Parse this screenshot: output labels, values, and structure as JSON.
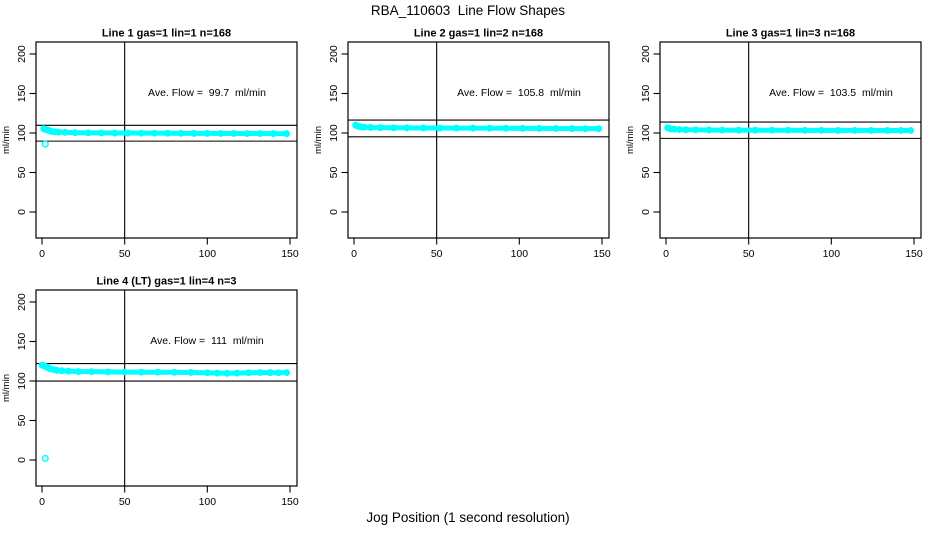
{
  "title": "RBA_110603  Line Flow Shapes",
  "xlabel": "Jog Position (1 second resolution)",
  "chart_data": {
    "type": "scatter",
    "title": "RBA_110603  Line Flow Shapes",
    "xlabel": "Jog Position (1 second resolution)",
    "ylabel": "ml/min",
    "xlim": [
      0,
      150
    ],
    "ylim": [
      0,
      200
    ],
    "x_ticks": [
      0,
      50,
      100,
      150
    ],
    "y_ticks": [
      0,
      50,
      100,
      150,
      200
    ],
    "point_color": "#00ffff",
    "line_color": "#000000",
    "grid": "off",
    "layout": "2x3 panel grid: three panels in top row, one panel bottom-left",
    "panels": [
      {
        "title": "Line 1 gas=1 lin=1 n=168",
        "annotation": "Ave. Flow =  99.7  ml/min",
        "ave_flow_ml_min": 99.7,
        "n": 168,
        "vline_x": 50,
        "hlines": [
          109.7,
          89.7
        ],
        "band_points": [
          [
            1,
            105.5
          ],
          [
            2,
            104.5
          ],
          [
            3,
            104
          ],
          [
            4,
            103.2
          ],
          [
            5,
            102.5
          ],
          [
            6,
            102
          ],
          [
            8,
            101.5
          ],
          [
            10,
            101.2
          ],
          [
            14,
            100.8
          ],
          [
            20,
            100.4
          ],
          [
            28,
            100.2
          ],
          [
            36,
            100.1
          ],
          [
            44,
            100
          ],
          [
            52,
            100
          ],
          [
            60,
            99.8
          ],
          [
            68,
            99.8
          ],
          [
            76,
            99.7
          ],
          [
            84,
            99.6
          ],
          [
            92,
            99.5
          ],
          [
            100,
            99.5
          ],
          [
            108,
            99.4
          ],
          [
            116,
            99.4
          ],
          [
            124,
            99.3
          ],
          [
            132,
            99.3
          ],
          [
            140,
            99.2
          ],
          [
            148,
            99.2
          ]
        ],
        "outlier_points": [
          [
            2,
            86
          ]
        ]
      },
      {
        "title": "Line 2 gas=1 lin=2 n=168",
        "annotation": "Ave. Flow =  105.8  ml/min",
        "ave_flow_ml_min": 105.8,
        "n": 168,
        "vline_x": 50,
        "hlines": [
          116.4,
          95.2
        ],
        "band_points": [
          [
            1,
            110
          ],
          [
            2,
            109
          ],
          [
            3,
            108.3
          ],
          [
            4,
            107.8
          ],
          [
            6,
            107.4
          ],
          [
            10,
            107
          ],
          [
            16,
            106.8
          ],
          [
            24,
            106.6
          ],
          [
            32,
            106.5
          ],
          [
            42,
            106.4
          ],
          [
            52,
            106.3
          ],
          [
            62,
            106.2
          ],
          [
            72,
            106.2
          ],
          [
            82,
            106.1
          ],
          [
            92,
            106
          ],
          [
            102,
            105.9
          ],
          [
            112,
            105.8
          ],
          [
            122,
            105.7
          ],
          [
            132,
            105.6
          ],
          [
            140,
            105.5
          ],
          [
            148,
            105.5
          ]
        ],
        "outlier_points": []
      },
      {
        "title": "Line 3 gas=1 lin=3 n=168",
        "annotation": "Ave. Flow =  103.5  ml/min",
        "ave_flow_ml_min": 103.5,
        "n": 168,
        "vline_x": 50,
        "hlines": [
          113.9,
          93.2
        ],
        "band_points": [
          [
            1,
            106.5
          ],
          [
            2,
            105.8
          ],
          [
            3,
            105.2
          ],
          [
            5,
            104.8
          ],
          [
            8,
            104.4
          ],
          [
            12,
            104.1
          ],
          [
            18,
            103.9
          ],
          [
            26,
            103.8
          ],
          [
            34,
            103.7
          ],
          [
            44,
            103.6
          ],
          [
            54,
            103.6
          ],
          [
            64,
            103.5
          ],
          [
            74,
            103.5
          ],
          [
            84,
            103.4
          ],
          [
            94,
            103.4
          ],
          [
            104,
            103.3
          ],
          [
            114,
            103.3
          ],
          [
            124,
            103.3
          ],
          [
            134,
            103.2
          ],
          [
            142,
            103.2
          ],
          [
            148,
            103.2
          ]
        ],
        "outlier_points": []
      },
      {
        "title": "Line 4 (LT) gas=1 lin=4 n=3",
        "annotation": "Ave. Flow =  111  ml/min",
        "ave_flow_ml_min": 111,
        "n": 3,
        "vline_x": 50,
        "hlines": [
          122.1,
          99.9
        ],
        "band_points": [
          [
            0,
            120
          ],
          [
            1,
            119.5
          ],
          [
            2,
            118.5
          ],
          [
            3,
            117.5
          ],
          [
            4,
            116.5
          ],
          [
            5,
            115.5
          ],
          [
            7,
            114.5
          ],
          [
            9,
            113.5
          ],
          [
            12,
            113
          ],
          [
            16,
            112.5
          ],
          [
            22,
            112
          ],
          [
            30,
            111.8
          ],
          [
            40,
            111.5
          ],
          [
            50,
            111.3
          ],
          [
            60,
            111.2
          ],
          [
            70,
            111.1
          ],
          [
            80,
            111
          ],
          [
            90,
            110.8
          ],
          [
            100,
            110.4
          ],
          [
            106,
            110
          ],
          [
            112,
            109.8
          ],
          [
            118,
            110
          ],
          [
            125,
            110.4
          ],
          [
            132,
            110.7
          ],
          [
            138,
            110.6
          ],
          [
            143,
            110.4
          ],
          [
            148,
            110.7
          ]
        ],
        "outlier_points": [
          [
            2,
            2
          ]
        ]
      }
    ]
  }
}
